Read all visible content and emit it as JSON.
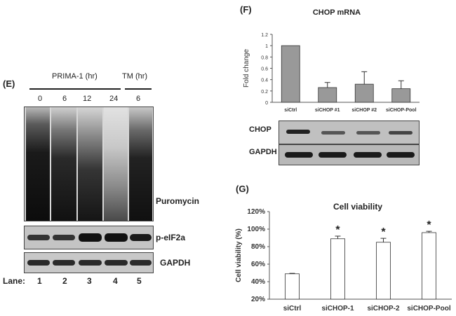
{
  "panel_e": {
    "label": "(E)",
    "prima_label": "PRIMA-1 (hr)",
    "tm_label": "TM (hr)",
    "timepoints": [
      "0",
      "6",
      "12",
      "24",
      "6"
    ],
    "blot_labels": [
      "Puromycin",
      "p-eIF2a",
      "GAPDH"
    ],
    "lane_label": "Lane:",
    "lanes": [
      "1",
      "2",
      "3",
      "4",
      "5"
    ]
  },
  "panel_f": {
    "label": "(F)",
    "blot_labels": [
      "CHOP",
      "GAPDH"
    ]
  },
  "panel_g": {
    "label": "(G)"
  },
  "chart_data": [
    {
      "type": "bar",
      "title": "CHOP mRNA",
      "xlabel": "",
      "ylabel": "Fold change",
      "categories": [
        "siCtrl",
        "siCHOP #1",
        "siCHOP #2",
        "siCHOP-Pool"
      ],
      "values": [
        1.0,
        0.26,
        0.32,
        0.24
      ],
      "errors": [
        0,
        0.09,
        0.22,
        0.14
      ],
      "ylim": [
        0,
        1.2
      ],
      "yticks": [
        "0",
        "0.2",
        "0.4",
        "0.6",
        "0.8",
        "1",
        "1.2"
      ],
      "bar_color": "#999999",
      "grid": false
    },
    {
      "type": "bar",
      "title": "Cell viability",
      "xlabel": "",
      "ylabel": "Cell viability (%)",
      "categories": [
        "siCtrl",
        "siCHOP-1",
        "siCHOP-2",
        "siCHOP-Pool"
      ],
      "values": [
        49,
        89,
        85,
        96
      ],
      "errors": [
        0.5,
        3,
        4.5,
        1.5
      ],
      "significance": [
        "",
        "*",
        "*",
        "*"
      ],
      "ylim": [
        20,
        120
      ],
      "yticks": [
        "20%",
        "40%",
        "60%",
        "80%",
        "100%",
        "120%"
      ],
      "bar_color": "#ffffff",
      "grid": false
    }
  ]
}
